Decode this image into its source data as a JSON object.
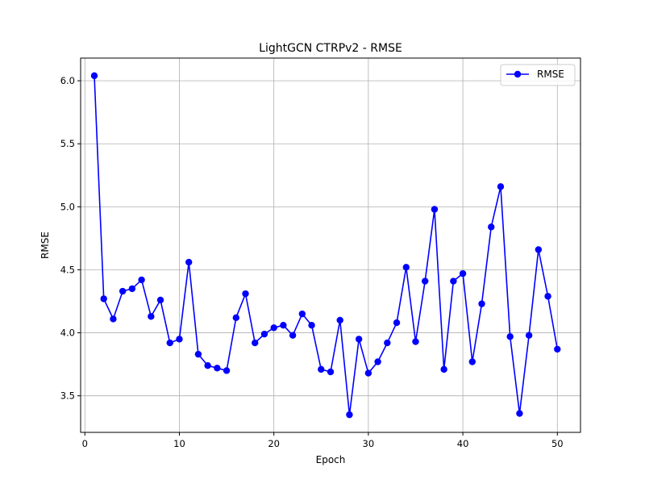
{
  "chart_data": {
    "type": "line",
    "title": "LightGCN CTRPv2 - RMSE",
    "xlabel": "Epoch",
    "ylabel": "RMSE",
    "xlim": [
      -0.45,
      52.45
    ],
    "ylim": [
      3.21,
      6.18
    ],
    "xticks": [
      0,
      10,
      20,
      30,
      40,
      50
    ],
    "yticks": [
      3.5,
      4.0,
      4.5,
      5.0,
      5.5,
      6.0
    ],
    "xtick_labels": [
      "0",
      "10",
      "20",
      "30",
      "40",
      "50"
    ],
    "ytick_labels": [
      "3.5",
      "4.0",
      "4.5",
      "5.0",
      "5.5",
      "6.0"
    ],
    "grid": true,
    "legend_position": "top-right",
    "series": [
      {
        "name": "RMSE",
        "color": "#0000ff",
        "marker": "circle",
        "x": [
          1,
          2,
          3,
          4,
          5,
          6,
          7,
          8,
          9,
          10,
          11,
          12,
          13,
          14,
          15,
          16,
          17,
          18,
          19,
          20,
          21,
          22,
          23,
          24,
          25,
          26,
          27,
          28,
          29,
          30,
          31,
          32,
          33,
          34,
          35,
          36,
          37,
          38,
          39,
          40,
          41,
          42,
          43,
          44,
          45,
          46,
          47,
          48,
          49,
          50
        ],
        "values": [
          6.04,
          4.27,
          4.11,
          4.33,
          4.35,
          4.42,
          4.13,
          4.26,
          3.92,
          3.95,
          4.56,
          3.83,
          3.74,
          3.72,
          3.7,
          4.12,
          4.31,
          3.92,
          3.99,
          4.04,
          4.06,
          3.98,
          4.15,
          4.06,
          3.71,
          3.69,
          4.1,
          3.35,
          3.95,
          3.68,
          3.77,
          3.92,
          4.08,
          4.52,
          3.93,
          4.41,
          4.98,
          3.71,
          4.41,
          4.47,
          3.77,
          4.23,
          4.84,
          5.16,
          3.97,
          3.36,
          3.98,
          4.66,
          4.29,
          3.87
        ]
      }
    ]
  }
}
